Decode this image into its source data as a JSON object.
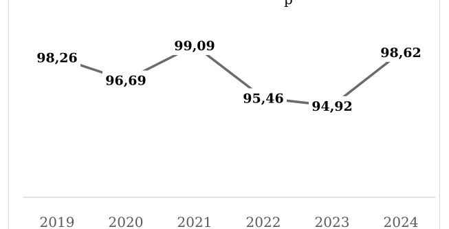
{
  "chart_data": {
    "type": "line",
    "title": "",
    "xlabel": "",
    "ylabel": "",
    "categories": [
      "2019",
      "2020",
      "2021",
      "2022",
      "2023",
      "2024"
    ],
    "series": [
      {
        "values": [
          98.26,
          96.69,
          99.09,
          95.46,
          94.92,
          98.62
        ],
        "labels": [
          "98,26",
          "96,69",
          "99,09",
          "95,46",
          "94,92",
          "98,62"
        ],
        "color": "#6b6b6b"
      }
    ],
    "ylim": [
      88.6,
      100.8
    ],
    "grid": false,
    "legend": "none"
  }
}
